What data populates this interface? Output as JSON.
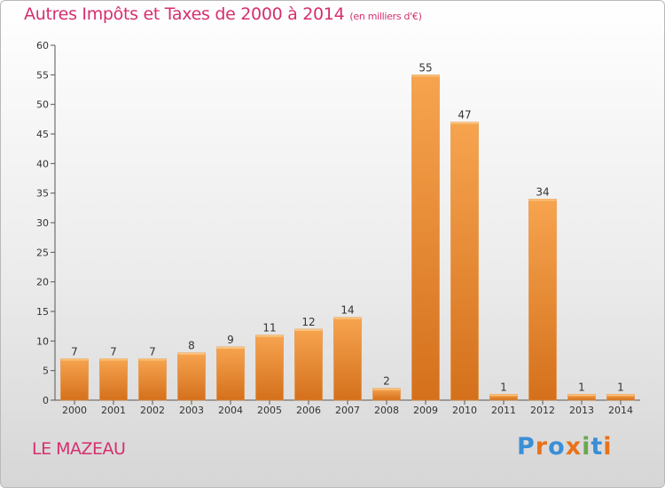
{
  "header": {
    "title": "Autres Impôts et Taxes de 2000 à 2014",
    "unit": "(en milliers d'€)"
  },
  "footer": {
    "commune": "LE MAZEAU",
    "logo_text": "Proxiti",
    "logo_colors": [
      "#3a8fd6",
      "#e8731a",
      "#3a8fd6",
      "#e8731a",
      "#6aa84f",
      "#3a8fd6",
      "#e8731a"
    ]
  },
  "colors": {
    "bar_light": "#f7a44f",
    "bar_dark": "#d4701c",
    "title": "#d62e6e"
  },
  "chart_data": {
    "type": "bar",
    "categories": [
      "2000",
      "2001",
      "2002",
      "2003",
      "2004",
      "2005",
      "2006",
      "2007",
      "2008",
      "2009",
      "2010",
      "2011",
      "2012",
      "2013",
      "2014"
    ],
    "values": [
      7,
      7,
      7,
      8,
      9,
      11,
      12,
      14,
      2,
      55,
      47,
      1,
      34,
      1,
      1
    ],
    "title": "Autres Impôts et Taxes de 2000 à 2014",
    "ylim": [
      0,
      60
    ],
    "yticks": [
      0,
      5,
      10,
      15,
      20,
      25,
      30,
      35,
      40,
      45,
      50,
      55,
      60
    ],
    "grid": false,
    "data_labels": true
  }
}
